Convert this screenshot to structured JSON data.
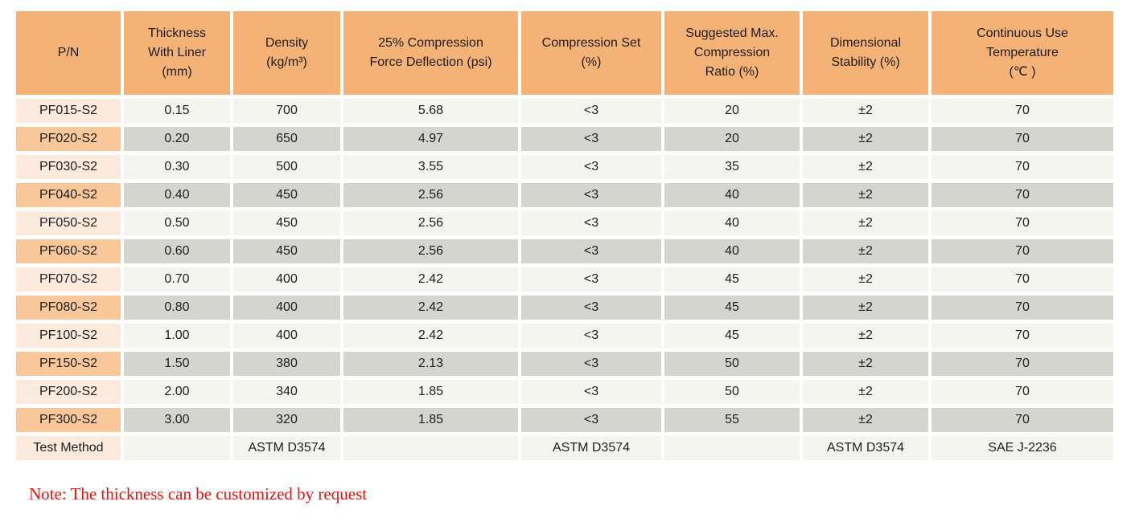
{
  "table": {
    "columns": [
      "P/N",
      "Thickness\nWith Liner\n(mm)",
      "Density\n(kg/m³)",
      "25% Compression\nForce Deflection (psi)",
      "Compression Set\n(%)",
      "Suggested Max.\nCompression\nRatio (%)",
      "Dimensional\nStability (%)",
      "Continuous Use\nTemperature\n(℃ )"
    ],
    "rows": [
      [
        "PF015-S2",
        "0.15",
        "700",
        "5.68",
        "<3",
        "20",
        "±2",
        "70"
      ],
      [
        "PF020-S2",
        "0.20",
        "650",
        "4.97",
        "<3",
        "20",
        "±2",
        "70"
      ],
      [
        "PF030-S2",
        "0.30",
        "500",
        "3.55",
        "<3",
        "35",
        "±2",
        "70"
      ],
      [
        "PF040-S2",
        "0.40",
        "450",
        "2.56",
        "<3",
        "40",
        "±2",
        "70"
      ],
      [
        "PF050-S2",
        "0.50",
        "450",
        "2.56",
        "<3",
        "40",
        "±2",
        "70"
      ],
      [
        "PF060-S2",
        "0.60",
        "450",
        "2.56",
        "<3",
        "40",
        "±2",
        "70"
      ],
      [
        "PF070-S2",
        "0.70",
        "400",
        "2.42",
        "<3",
        "45",
        "±2",
        "70"
      ],
      [
        "PF080-S2",
        "0.80",
        "400",
        "2.42",
        "<3",
        "45",
        "±2",
        "70"
      ],
      [
        "PF100-S2",
        "1.00",
        "400",
        "2.42",
        "<3",
        "45",
        "±2",
        "70"
      ],
      [
        "PF150-S2",
        "1.50",
        "380",
        "2.13",
        "<3",
        "50",
        "±2",
        "70"
      ],
      [
        "PF200-S2",
        "2.00",
        "340",
        "1.85",
        "<3",
        "50",
        "±2",
        "70"
      ],
      [
        "PF300-S2",
        "3.00",
        "320",
        "1.85",
        "<3",
        "55",
        "±2",
        "70"
      ]
    ],
    "footer": [
      "Test Method",
      "",
      "ASTM D3574",
      "",
      "ASTM D3574",
      "",
      "ASTM D3574",
      "SAE J-2236"
    ]
  },
  "note": "Note: The thickness can be customized by request",
  "colors": {
    "header_orange": "#f5b277",
    "pn_peach_dark": "#f8c89a",
    "pn_peach_light": "#fcebdc",
    "stripe_gray_dark": "#d5d5cf",
    "stripe_gray_light": "#f4f4ef",
    "note_red": "#f20d0d"
  }
}
